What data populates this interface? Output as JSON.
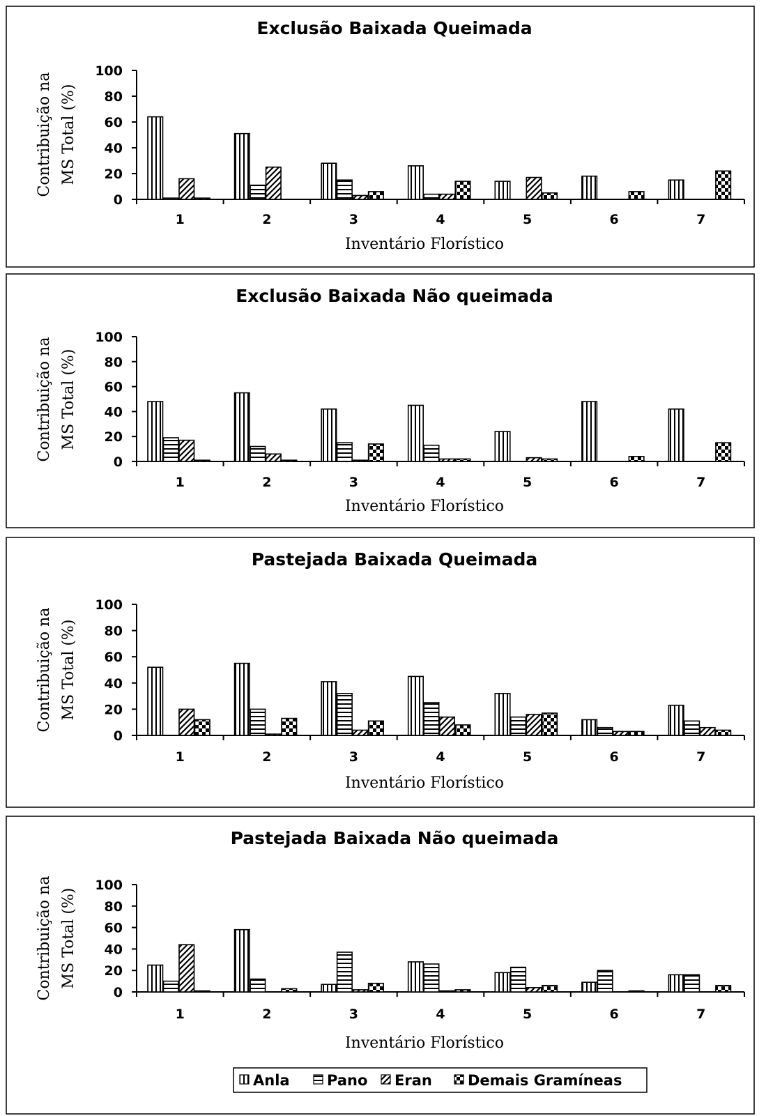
{
  "chart_data": [
    {
      "type": "bar",
      "title": "Exclusão Baixada Queimada",
      "xlabel": "Inventário Florístico",
      "ylabel": [
        "Contribuição na",
        "MS Total (%)"
      ],
      "categories": [
        "1",
        "2",
        "3",
        "4",
        "5",
        "6",
        "7"
      ],
      "ylim": [
        0,
        100
      ],
      "yticks": [
        0,
        20,
        40,
        60,
        80,
        100
      ],
      "series": [
        {
          "name": "Anla",
          "values": [
            64,
            51,
            28,
            26,
            14,
            18,
            15
          ]
        },
        {
          "name": "Pano",
          "values": [
            1,
            11,
            15,
            4,
            0,
            0,
            0
          ]
        },
        {
          "name": "Eran",
          "values": [
            16,
            25,
            3,
            4,
            17,
            0,
            0
          ]
        },
        {
          "name": "Demais Gramíneas",
          "values": [
            1,
            0,
            6,
            14,
            5,
            6,
            22
          ]
        }
      ]
    },
    {
      "type": "bar",
      "title": "Exclusão Baixada Não queimada",
      "xlabel": "Inventário Florístico",
      "ylabel": [
        "Contribuição na",
        "MS Total (%)"
      ],
      "categories": [
        "1",
        "2",
        "3",
        "4",
        "5",
        "6",
        "7"
      ],
      "ylim": [
        0,
        100
      ],
      "yticks": [
        0,
        20,
        40,
        60,
        80,
        100
      ],
      "series": [
        {
          "name": "Anla",
          "values": [
            48,
            55,
            42,
            45,
            24,
            48,
            42
          ]
        },
        {
          "name": "Pano",
          "values": [
            19,
            12,
            15,
            13,
            0,
            0,
            0
          ]
        },
        {
          "name": "Eran",
          "values": [
            17,
            6,
            1,
            2,
            3,
            0,
            0
          ]
        },
        {
          "name": "Demais Gramíneas",
          "values": [
            1,
            1,
            14,
            2,
            2,
            4,
            15
          ]
        }
      ]
    },
    {
      "type": "bar",
      "title": "Pastejada Baixada Queimada",
      "xlabel": "Inventário Florístico",
      "ylabel": [
        "Contribuição na",
        "MS Total (%)"
      ],
      "categories": [
        "1",
        "2",
        "3",
        "4",
        "5",
        "6",
        "7"
      ],
      "ylim": [
        0,
        100
      ],
      "yticks": [
        0,
        20,
        40,
        60,
        80,
        100
      ],
      "series": [
        {
          "name": "Anla",
          "values": [
            52,
            55,
            41,
            45,
            32,
            12,
            23
          ]
        },
        {
          "name": "Pano",
          "values": [
            0,
            20,
            32,
            25,
            14,
            6,
            11
          ]
        },
        {
          "name": "Eran",
          "values": [
            20,
            1,
            4,
            14,
            16,
            3,
            6
          ]
        },
        {
          "name": "Demais Gramíneas",
          "values": [
            12,
            13,
            11,
            8,
            17,
            3,
            4
          ]
        }
      ]
    },
    {
      "type": "bar",
      "title": "Pastejada Baixada Não queimada",
      "xlabel": "Inventário Florístico",
      "ylabel": [
        "Contribuição na",
        "MS Total (%)"
      ],
      "categories": [
        "1",
        "2",
        "3",
        "4",
        "5",
        "6",
        "7"
      ],
      "ylim": [
        0,
        100
      ],
      "yticks": [
        0,
        20,
        40,
        60,
        80,
        100
      ],
      "series": [
        {
          "name": "Anla",
          "values": [
            25,
            58,
            7,
            28,
            18,
            9,
            16
          ]
        },
        {
          "name": "Pano",
          "values": [
            10,
            12,
            37,
            26,
            23,
            20,
            16
          ]
        },
        {
          "name": "Eran",
          "values": [
            44,
            0,
            2,
            1,
            4,
            0,
            0
          ]
        },
        {
          "name": "Demais Gramíneas",
          "values": [
            1,
            3,
            8,
            2,
            6,
            1,
            6
          ]
        }
      ]
    }
  ],
  "legend": {
    "placement": "bottom",
    "items": [
      {
        "label": "Anla",
        "pattern": "vertical"
      },
      {
        "label": "Pano",
        "pattern": "horizontal"
      },
      {
        "label": "Eran",
        "pattern": "diagonal"
      },
      {
        "label": "Demais Gramíneas",
        "pattern": "checker"
      }
    ]
  }
}
